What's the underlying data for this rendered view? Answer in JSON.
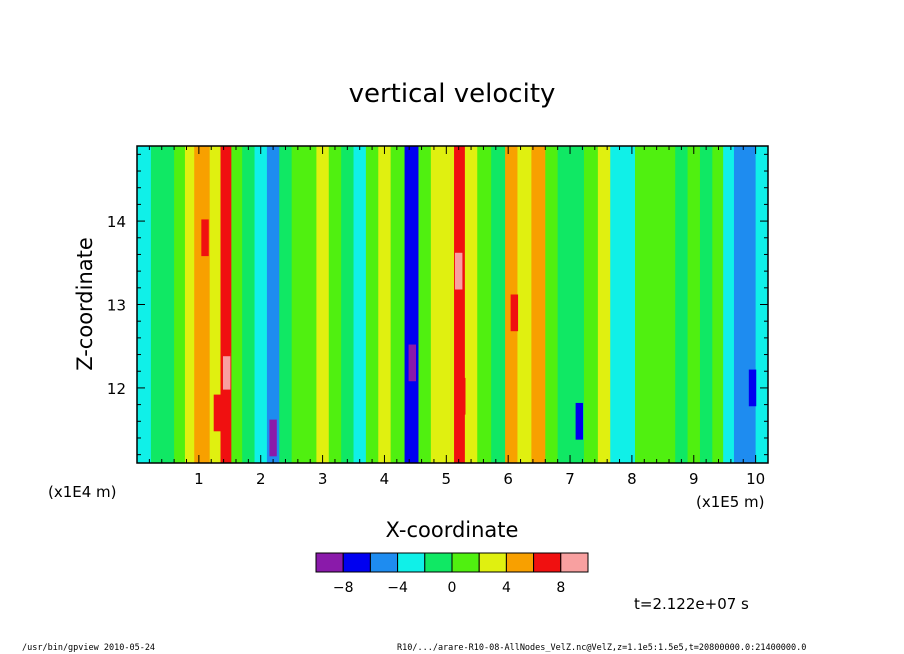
{
  "chart_data": {
    "type": "heatmap",
    "title": "vertical velocity",
    "xlabel": "X-coordinate",
    "ylabel": "Z-coordinate",
    "x_scale_label": "(x1E5 m)",
    "y_scale_label": "(x1E4 m)",
    "x_ticks": [
      1,
      2,
      3,
      4,
      5,
      6,
      7,
      8,
      9,
      10
    ],
    "y_ticks": [
      12,
      13,
      14
    ],
    "xlim": [
      0.0,
      10.2
    ],
    "ylim": [
      11.1,
      14.9
    ],
    "colorbar": {
      "boundaries": [
        -10,
        -8,
        -6,
        -4,
        -2,
        0,
        2,
        4,
        6,
        8,
        10
      ],
      "labels": [
        "−8",
        "−4",
        "0",
        "4",
        "8"
      ],
      "label_values": [
        -8,
        -4,
        0,
        4,
        8
      ],
      "colors": [
        "#8a1aaa",
        "#0000f0",
        "#1e8cf0",
        "#10f0e8",
        "#10e864",
        "#50f010",
        "#e0f010",
        "#f8a000",
        "#f01010",
        "#f8a0a0"
      ]
    },
    "columns": [
      {
        "x": 0.15,
        "w": -2.5
      },
      {
        "x": 0.3,
        "w": -1.5
      },
      {
        "x": 0.5,
        "w": -0.5
      },
      {
        "x": 0.7,
        "w": 0.3
      },
      {
        "x": 0.85,
        "w": 2.5
      },
      {
        "x": 1.0,
        "w": 4.5
      },
      {
        "x": 1.1,
        "w": 5.5
      },
      {
        "x": 1.25,
        "w": 3.0
      },
      {
        "x": 1.45,
        "w": 6.0
      },
      {
        "x": 1.6,
        "w": 1.5
      },
      {
        "x": 1.8,
        "w": -0.5
      },
      {
        "x": 2.0,
        "w": -2.5
      },
      {
        "x": 2.2,
        "w": -6.0
      },
      {
        "x": 2.4,
        "w": -1.0
      },
      {
        "x": 2.6,
        "w": 0.5
      },
      {
        "x": 2.8,
        "w": 1.5
      },
      {
        "x": 3.0,
        "w": 2.2
      },
      {
        "x": 3.2,
        "w": 0.8
      },
      {
        "x": 3.4,
        "w": -0.5
      },
      {
        "x": 3.6,
        "w": -2.5
      },
      {
        "x": 3.8,
        "w": 1.0
      },
      {
        "x": 4.0,
        "w": 2.8
      },
      {
        "x": 4.2,
        "w": 0.5
      },
      {
        "x": 4.45,
        "w": -7.0
      },
      {
        "x": 4.65,
        "w": 1.5
      },
      {
        "x": 4.85,
        "w": 2.8
      },
      {
        "x": 5.05,
        "w": 3.5
      },
      {
        "x": 5.2,
        "w": 7.5
      },
      {
        "x": 5.4,
        "w": 2.5
      },
      {
        "x": 5.6,
        "w": 0.3
      },
      {
        "x": 5.85,
        "w": -1.5
      },
      {
        "x": 6.05,
        "w": 5.5
      },
      {
        "x": 6.25,
        "w": 2.0
      },
      {
        "x": 6.5,
        "w": 4.5
      },
      {
        "x": 6.7,
        "w": 0.5
      },
      {
        "x": 6.9,
        "w": -2.0
      },
      {
        "x": 7.1,
        "w": -0.5
      },
      {
        "x": 7.35,
        "w": 1.5
      },
      {
        "x": 7.55,
        "w": 3.5
      },
      {
        "x": 7.75,
        "w": -2.5
      },
      {
        "x": 7.95,
        "w": -3.0
      },
      {
        "x": 8.15,
        "w": 1.0
      },
      {
        "x": 8.4,
        "w": 0.5
      },
      {
        "x": 8.6,
        "w": 0.0
      },
      {
        "x": 8.8,
        "w": -1.0
      },
      {
        "x": 9.0,
        "w": 0.5
      },
      {
        "x": 9.2,
        "w": -0.5
      },
      {
        "x": 9.4,
        "w": 0.3
      },
      {
        "x": 9.55,
        "w": -2.5
      },
      {
        "x": 9.75,
        "w": -4.5
      },
      {
        "x": 9.9,
        "w": -5.5
      },
      {
        "x": 10.1,
        "w": -3.0
      }
    ],
    "cells": [
      {
        "x": 1.45,
        "z": 12.2,
        "w": 9.0
      },
      {
        "x": 1.45,
        "z": 12.6,
        "w": 7.5
      },
      {
        "x": 1.3,
        "z": 11.7,
        "w": 7.5
      },
      {
        "x": 1.1,
        "z": 13.8,
        "w": 7.0
      },
      {
        "x": 5.2,
        "z": 13.4,
        "w": 8.0
      },
      {
        "x": 5.25,
        "z": 11.9,
        "w": 7.5
      },
      {
        "x": 6.1,
        "z": 12.9,
        "w": 7.5
      },
      {
        "x": 2.2,
        "z": 11.4,
        "w": -8.5
      },
      {
        "x": 4.45,
        "z": 12.3,
        "w": -8.5
      },
      {
        "x": 7.15,
        "z": 11.6,
        "w": -8.0
      },
      {
        "x": 9.95,
        "z": 12.0,
        "w": -8.0
      }
    ]
  },
  "time_label": "t=2.122e+07 s",
  "footer": {
    "left": "/usr/bin/gpview   2010-05-24",
    "right": "R10/.../arare-R10-08-AllNodes_VelZ.nc@VelZ,z=1.1e5:1.5e5,t=20800000.0:21400000.0"
  }
}
